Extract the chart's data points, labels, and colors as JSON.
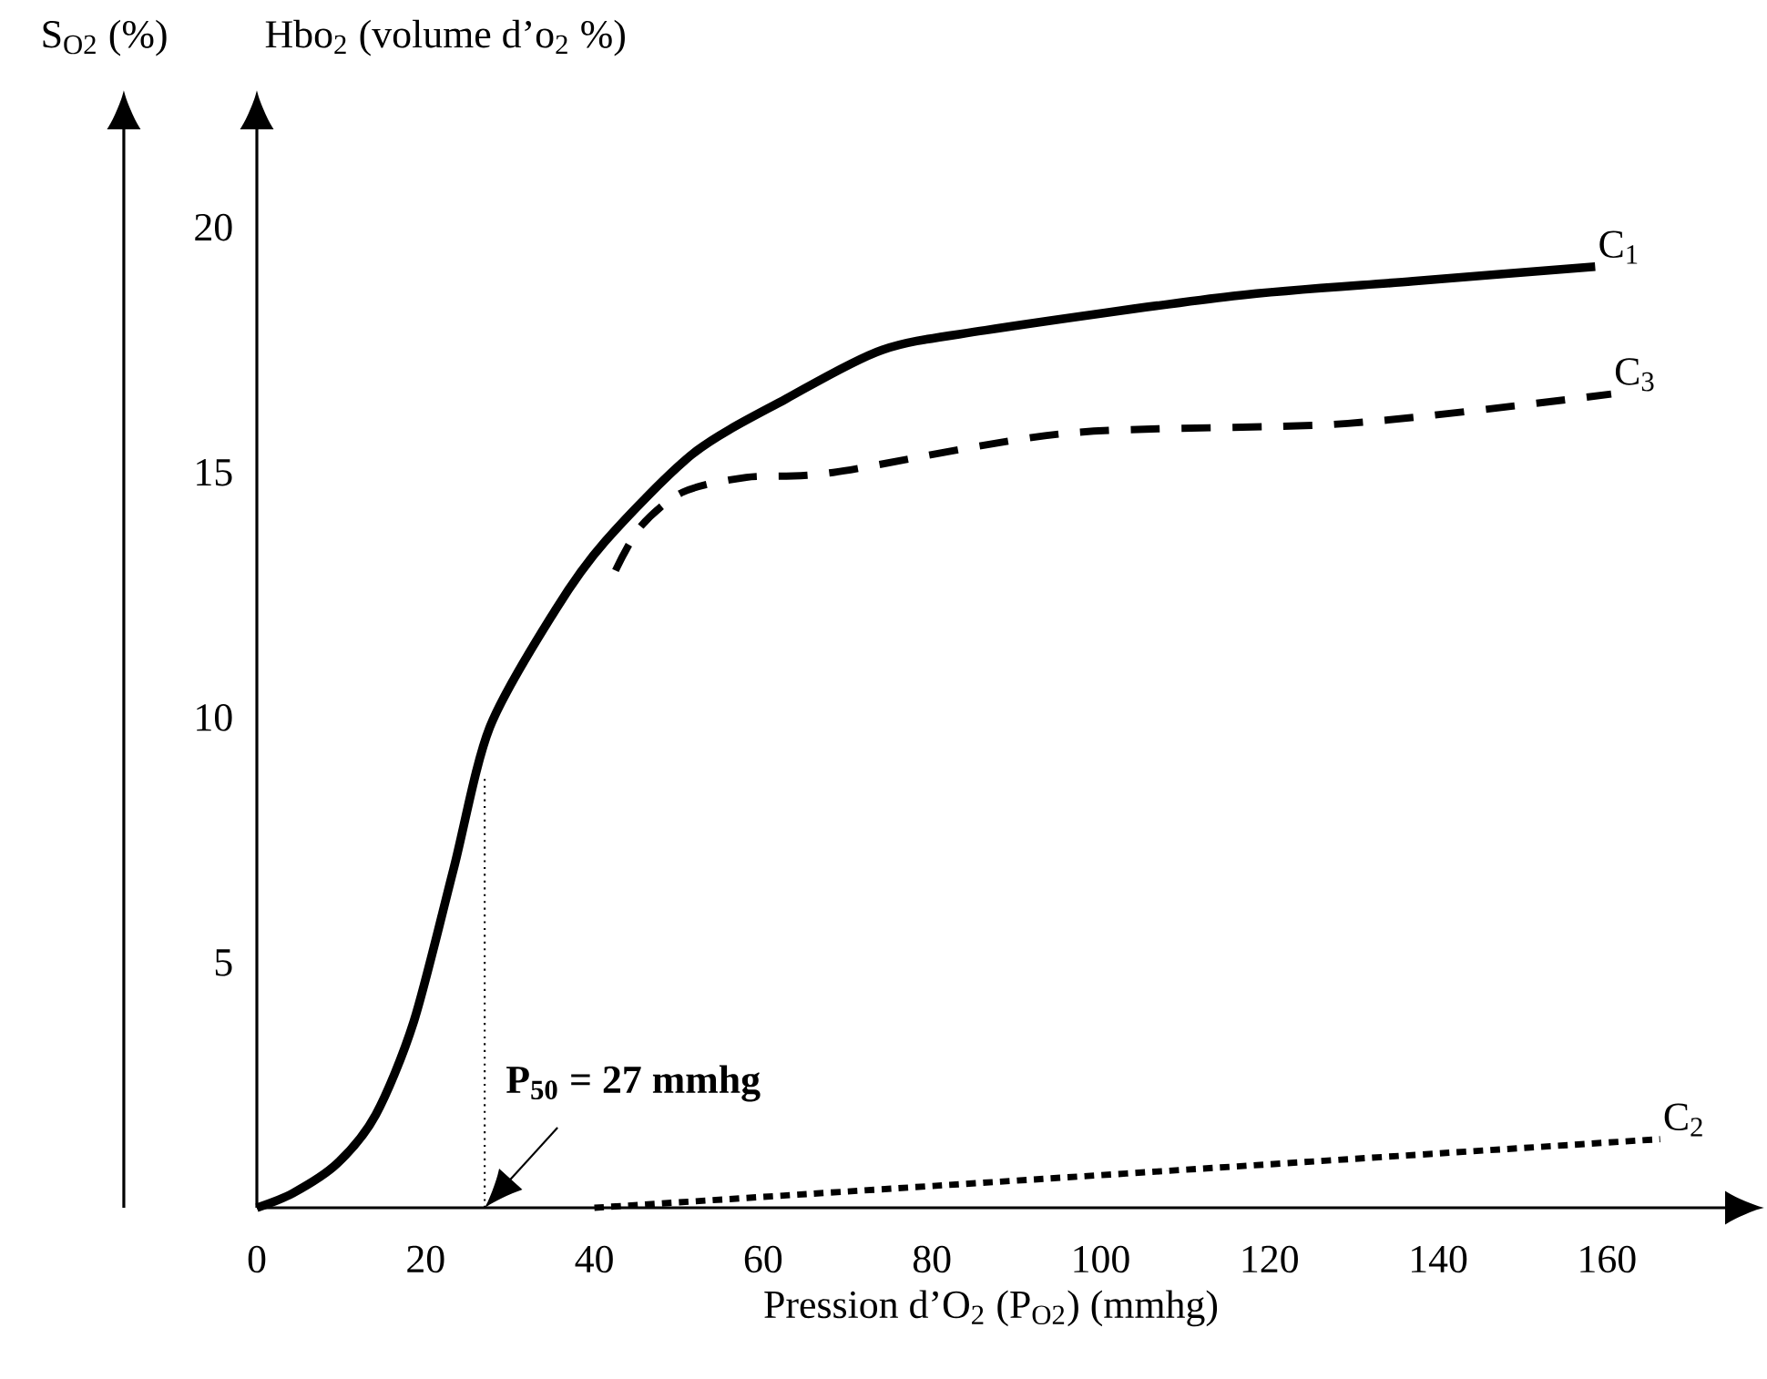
{
  "chart_data": {
    "type": "line",
    "xlabel": "Pression d’O$_{2}$ (P$_{O2}$) (mmhg)",
    "ylabel": "Hbo$_{2}$ (volume d’o$_{2}$ %)",
    "y2label": "S$_{O2}$ (%)",
    "xlim": [
      0,
      174
    ],
    "ylim": [
      0,
      22
    ],
    "xticks": [
      0,
      20,
      40,
      60,
      80,
      100,
      120,
      140,
      160
    ],
    "yticks": [
      5,
      10,
      15,
      20
    ],
    "grid": false,
    "legend": false,
    "series": [
      {
        "name": "C$_{1}$",
        "color": "#000000",
        "line_style": "solid",
        "x": [
          0,
          4.3,
          9.5,
          14.1,
          18.6,
          23.3,
          27.6,
          35.4,
          41.3,
          51.8,
          62.7,
          74.1,
          86.3,
          115.7,
          137,
          158.6
        ],
        "values": [
          0,
          0.3,
          0.9,
          1.9,
          3.8,
          6.9,
          9.8,
          12.2,
          13.6,
          15.4,
          16.5,
          17.5,
          17.9,
          18.6,
          18.9,
          19.2
        ]
      },
      {
        "name": "C$_{2}$",
        "color": "#000000",
        "line_style": "dotted",
        "x": [
          40,
          166.3
        ],
        "values": [
          0,
          1.4
        ]
      },
      {
        "name": "C$_{3}$",
        "color": "#000000",
        "line_style": "dashed",
        "x": [
          42.5,
          45.5,
          50.5,
          58,
          68.3,
          96,
          129.3,
          160.5
        ],
        "values": [
          13,
          13.9,
          14.6,
          14.9,
          15,
          15.8,
          16,
          16.6
        ]
      }
    ],
    "ref_lines": [
      {
        "axis": "x",
        "value": 27,
        "line_style": "dotted"
      }
    ],
    "annotations": [
      {
        "text": "P$_{50}$ = 27 mmhg",
        "x": 27,
        "y": 0
      }
    ]
  }
}
